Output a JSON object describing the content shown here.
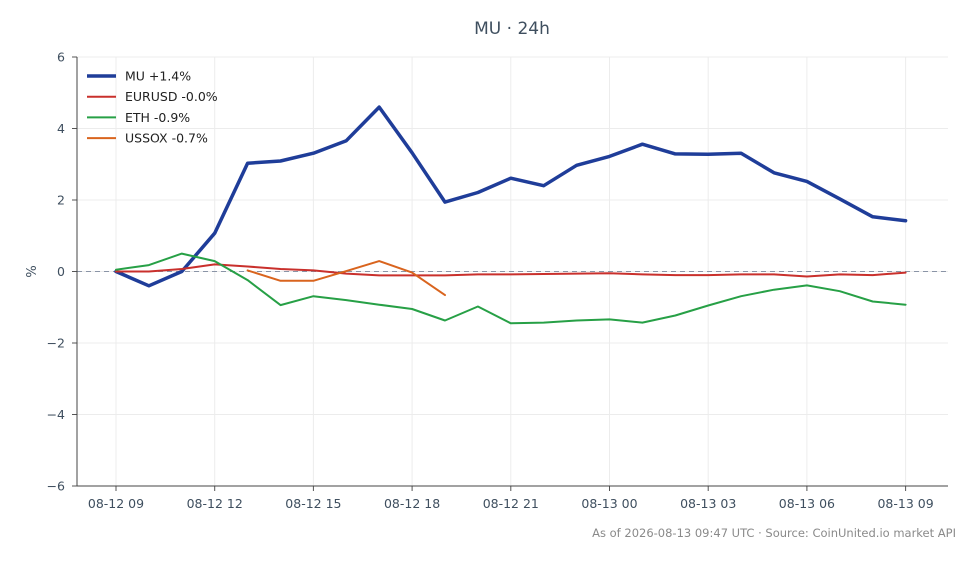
{
  "chart_data": {
    "type": "line",
    "title": "MU · 24h",
    "ylabel": "%",
    "xlabel": "",
    "ylim": [
      -6,
      6
    ],
    "yticks": [
      6,
      4,
      2,
      0,
      -2,
      -4,
      -6
    ],
    "ytick_labels": [
      "6",
      "4",
      "2",
      "0",
      "−2",
      "−4",
      "−6"
    ],
    "xlim": [
      0,
      24.2
    ],
    "xticks": [
      0,
      3,
      6,
      9,
      12,
      15,
      18,
      21,
      24
    ],
    "xtick_labels": [
      "08-12 09",
      "08-12 12",
      "08-12 15",
      "08-12 18",
      "08-12 21",
      "08-13 00",
      "08-13 03",
      "08-13 06",
      "08-13 09"
    ],
    "grid": true,
    "legend_position": "top-left",
    "zero_line": true,
    "series": [
      {
        "name": "MU +1.4%",
        "color": "#1f3d99",
        "width": 3.5,
        "x": [
          0,
          1,
          2,
          3,
          4,
          5,
          6,
          7,
          8,
          9,
          10,
          11,
          12,
          13,
          14,
          15,
          16,
          17,
          18,
          19,
          20,
          21,
          22,
          23,
          24
        ],
        "values": [
          0.0,
          -0.4,
          0.0,
          1.07,
          3.03,
          3.09,
          3.31,
          3.66,
          4.6,
          3.32,
          1.94,
          2.21,
          2.61,
          2.4,
          2.97,
          3.22,
          3.56,
          3.29,
          3.28,
          3.31,
          2.76,
          2.52,
          2.03,
          1.53,
          1.42
        ]
      },
      {
        "name": "EURUSD -0.0%",
        "color": "#c9302c",
        "width": 2,
        "x": [
          0,
          1,
          2,
          3,
          4,
          5,
          6,
          7,
          8,
          9,
          10,
          11,
          12,
          13,
          14,
          15,
          16,
          17,
          18,
          19,
          20,
          21,
          22,
          23,
          24
        ],
        "values": [
          0.0,
          0.0,
          0.07,
          0.2,
          0.14,
          0.07,
          0.03,
          -0.06,
          -0.11,
          -0.11,
          -0.11,
          -0.08,
          -0.08,
          -0.07,
          -0.06,
          -0.05,
          -0.08,
          -0.1,
          -0.1,
          -0.08,
          -0.08,
          -0.14,
          -0.08,
          -0.1,
          -0.03
        ]
      },
      {
        "name": "ETH -0.9%",
        "color": "#27a046",
        "width": 2,
        "x": [
          0,
          1,
          2,
          3,
          4,
          5,
          6,
          7,
          8,
          9,
          10,
          11,
          12,
          13,
          14,
          15,
          16,
          17,
          18,
          19,
          20,
          21,
          22,
          23,
          24
        ],
        "values": [
          0.05,
          0.18,
          0.5,
          0.29,
          -0.24,
          -0.94,
          -0.69,
          -0.8,
          -0.93,
          -1.05,
          -1.37,
          -0.98,
          -1.45,
          -1.43,
          -1.37,
          -1.34,
          -1.43,
          -1.23,
          -0.95,
          -0.69,
          -0.51,
          -0.39,
          -0.55,
          -0.84,
          -0.93
        ]
      },
      {
        "name": "USSOX -0.7%",
        "color": "#d9641e",
        "width": 2,
        "x": [
          4,
          5,
          6,
          7,
          8,
          9,
          10
        ],
        "values": [
          0.03,
          -0.26,
          -0.26,
          0.01,
          0.29,
          -0.03,
          -0.66
        ]
      }
    ]
  },
  "footer": "As of 2026-08-13 09:47 UTC · Source: CoinUnited.io market API"
}
